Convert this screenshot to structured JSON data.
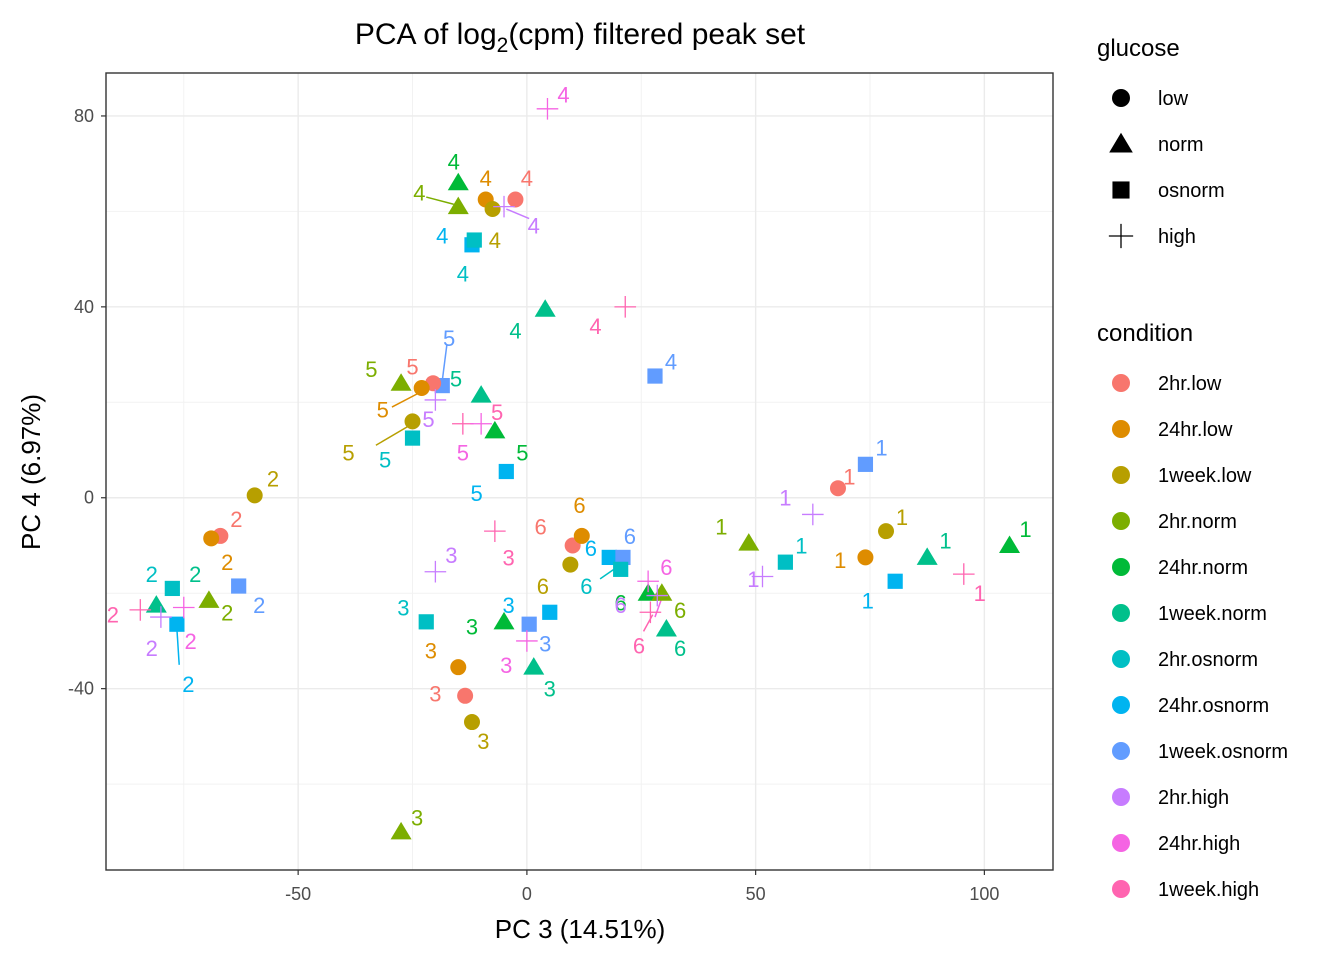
{
  "chart_data": {
    "type": "scatter",
    "title_main": "PCA of log",
    "title_sub": "2",
    "title_rest": "(cpm) filtered peak set",
    "xlabel": "PC 3 (14.51%)",
    "ylabel": "PC 4 (6.97%)",
    "xlim": [
      -92,
      115
    ],
    "ylim": [
      -78,
      89
    ],
    "xticks": [
      -50,
      0,
      50,
      100
    ],
    "xtick_labels": [
      "-50",
      "0",
      "50",
      "100"
    ],
    "yticks": [
      -40,
      0,
      40,
      80
    ],
    "ytick_labels": [
      "-40",
      "0",
      "40",
      "80"
    ],
    "grid": true,
    "legend_position": "right",
    "shape_legend": {
      "title": "glucose",
      "items": [
        {
          "label": "low",
          "shape": "circle"
        },
        {
          "label": "norm",
          "shape": "triangle"
        },
        {
          "label": "osnorm",
          "shape": "square"
        },
        {
          "label": "high",
          "shape": "plus"
        }
      ]
    },
    "color_legend": {
      "title": "condition",
      "items": [
        {
          "label": "2hr.low",
          "color": "#F8766D"
        },
        {
          "label": "24hr.low",
          "color": "#DE8C00"
        },
        {
          "label": "1week.low",
          "color": "#B79F00"
        },
        {
          "label": "2hr.norm",
          "color": "#7CAE00"
        },
        {
          "label": "24hr.norm",
          "color": "#00BA38"
        },
        {
          "label": "1week.norm",
          "color": "#00C08B"
        },
        {
          "label": "2hr.osnorm",
          "color": "#00BFC4"
        },
        {
          "label": "24hr.osnorm",
          "color": "#00B4F0"
        },
        {
          "label": "1week.osnorm",
          "color": "#619CFF"
        },
        {
          "label": "2hr.high",
          "color": "#C77CFF"
        },
        {
          "label": "24hr.high",
          "color": "#F564E3"
        },
        {
          "label": "1week.high",
          "color": "#FF64B0"
        }
      ]
    },
    "points": [
      {
        "x": 74,
        "y": 7,
        "shape": "square",
        "cond": "1week.osnorm",
        "label": "1",
        "lx": 77.5,
        "ly": 10.5
      },
      {
        "x": 68,
        "y": 2,
        "shape": "circle",
        "cond": "2hr.low",
        "label": "1",
        "lx": 70.5,
        "ly": 4.5
      },
      {
        "x": 62.5,
        "y": -3.5,
        "shape": "plus",
        "cond": "2hr.high",
        "label": "1",
        "lx": 56.5,
        "ly": 0
      },
      {
        "x": 78.5,
        "y": -7,
        "shape": "circle",
        "cond": "1week.low",
        "label": "1",
        "lx": 82,
        "ly": -4
      },
      {
        "x": 74,
        "y": -12.5,
        "shape": "circle",
        "cond": "24hr.low",
        "label": "1",
        "lx": 68.5,
        "ly": -13
      },
      {
        "x": 48.5,
        "y": -9.5,
        "shape": "triangle",
        "cond": "2hr.norm",
        "label": "1",
        "lx": 42.5,
        "ly": -6
      },
      {
        "x": 56.5,
        "y": -13.5,
        "shape": "square",
        "cond": "2hr.osnorm",
        "label": "1",
        "lx": 60,
        "ly": -10
      },
      {
        "x": 87.5,
        "y": -12.5,
        "shape": "triangle",
        "cond": "1week.norm",
        "label": "1",
        "lx": 91.5,
        "ly": -9
      },
      {
        "x": 105.5,
        "y": -10,
        "shape": "triangle",
        "cond": "24hr.norm",
        "label": "1",
        "lx": 109,
        "ly": -6.5
      },
      {
        "x": 80.5,
        "y": -17.5,
        "shape": "square",
        "cond": "24hr.osnorm",
        "label": "1",
        "lx": 74.5,
        "ly": -21.5
      },
      {
        "x": 95.5,
        "y": -16,
        "shape": "plus",
        "cond": "1week.high",
        "label": "1",
        "lx": 99,
        "ly": -20
      },
      {
        "x": 51.5,
        "y": -16.5,
        "shape": "plus",
        "cond": "2hr.high",
        "label": "1",
        "lx": 49.5,
        "ly": -17
      },
      {
        "x": -59.5,
        "y": 0.5,
        "shape": "circle",
        "cond": "1week.low",
        "label": "2",
        "lx": -55.5,
        "ly": 4
      },
      {
        "x": -67,
        "y": -8,
        "shape": "circle",
        "cond": "2hr.low",
        "label": "2",
        "lx": -63.5,
        "ly": -4.5
      },
      {
        "x": -69,
        "y": -8.5,
        "shape": "circle",
        "cond": "24hr.low",
        "label": "2",
        "lx": -65.5,
        "ly": -13.5
      },
      {
        "x": -77.5,
        "y": -19,
        "shape": "square",
        "cond": "2hr.osnorm",
        "label": "2",
        "lx": -82,
        "ly": -16
      },
      {
        "x": -69.5,
        "y": -21.5,
        "shape": "triangle",
        "cond": "2hr.norm",
        "label": "2",
        "lx": -65.5,
        "ly": -24
      },
      {
        "x": -63,
        "y": -18.5,
        "shape": "square",
        "cond": "1week.osnorm",
        "label": "2",
        "lx": -58.5,
        "ly": -22.5
      },
      {
        "x": -81,
        "y": -22.5,
        "shape": "triangle",
        "cond": "1week.norm",
        "label": "2",
        "lx": -72.5,
        "ly": -16
      },
      {
        "x": -84.5,
        "y": -23.5,
        "shape": "plus",
        "cond": "1week.high",
        "label": "2",
        "lx": -90.5,
        "ly": -24.5
      },
      {
        "x": -76.5,
        "y": -26.5,
        "shape": "square",
        "cond": "24hr.osnorm",
        "label": "2",
        "lx": -74,
        "ly": -39
      },
      {
        "x": -75,
        "y": -23,
        "shape": "plus",
        "cond": "24hr.high",
        "label": "2",
        "lx": -73.5,
        "ly": -30
      },
      {
        "x": -80,
        "y": -25,
        "shape": "plus",
        "cond": "2hr.high",
        "label": "2",
        "lx": -82,
        "ly": -31.5
      },
      {
        "x": -20,
        "y": -15.5,
        "shape": "plus",
        "cond": "2hr.high",
        "label": "3",
        "lx": -16.5,
        "ly": -12
      },
      {
        "x": -7,
        "y": -7,
        "shape": "plus",
        "cond": "1week.high",
        "label": "3",
        "lx": -4,
        "ly": -12.5
      },
      {
        "x": -22,
        "y": -26,
        "shape": "square",
        "cond": "2hr.osnorm",
        "label": "3",
        "lx": -27,
        "ly": -23
      },
      {
        "x": -5,
        "y": -26,
        "shape": "triangle",
        "cond": "24hr.norm",
        "label": "3",
        "lx": -12,
        "ly": -27
      },
      {
        "x": 0.5,
        "y": -26.5,
        "shape": "square",
        "cond": "1week.osnorm",
        "label": "3",
        "lx": 4,
        "ly": -30.5
      },
      {
        "x": 0,
        "y": -30,
        "shape": "plus",
        "cond": "24hr.high",
        "label": "3",
        "lx": -4.5,
        "ly": -35
      },
      {
        "x": 1.5,
        "y": -35.5,
        "shape": "triangle",
        "cond": "1week.norm",
        "label": "3",
        "lx": 5,
        "ly": -40
      },
      {
        "x": -15,
        "y": -35.5,
        "shape": "circle",
        "cond": "24hr.low",
        "label": "3",
        "lx": -21,
        "ly": -32
      },
      {
        "x": -13.5,
        "y": -41.5,
        "shape": "circle",
        "cond": "2hr.low",
        "label": "3",
        "lx": -20,
        "ly": -41
      },
      {
        "x": -12,
        "y": -47,
        "shape": "circle",
        "cond": "1week.low",
        "label": "3",
        "lx": -9.5,
        "ly": -51
      },
      {
        "x": 5,
        "y": -24,
        "shape": "square",
        "cond": "24hr.osnorm",
        "label": "3",
        "lx": -4,
        "ly": -22.5
      },
      {
        "x": -27.5,
        "y": -70,
        "shape": "triangle",
        "cond": "2hr.norm",
        "label": "3",
        "lx": -24,
        "ly": -67
      },
      {
        "x": 4.5,
        "y": 81.5,
        "shape": "plus",
        "cond": "24hr.high",
        "label": "4",
        "lx": 8,
        "ly": 84.5
      },
      {
        "x": -15,
        "y": 66,
        "shape": "triangle",
        "cond": "24hr.norm",
        "label": "4",
        "lx": -16,
        "ly": 70.5
      },
      {
        "x": -9,
        "y": 62.5,
        "shape": "circle",
        "cond": "24hr.low",
        "label": "4",
        "lx": -9,
        "ly": 67
      },
      {
        "x": -2.5,
        "y": 62.5,
        "shape": "circle",
        "cond": "2hr.low",
        "label": "4",
        "lx": 0,
        "ly": 67
      },
      {
        "x": -15,
        "y": 61,
        "shape": "triangle",
        "cond": "2hr.norm",
        "label": "4",
        "lx": -23.5,
        "ly": 64
      },
      {
        "x": -7.5,
        "y": 60.5,
        "shape": "circle",
        "cond": "1week.low",
        "label": "4",
        "lx": -7,
        "ly": 54
      },
      {
        "x": -5,
        "y": 61,
        "shape": "plus",
        "cond": "2hr.high",
        "label": "4",
        "lx": 1.5,
        "ly": 57
      },
      {
        "x": -12,
        "y": 53,
        "shape": "square",
        "cond": "24hr.osnorm",
        "label": "4",
        "lx": -18.5,
        "ly": 55
      },
      {
        "x": -11.5,
        "y": 54,
        "shape": "square",
        "cond": "2hr.osnorm",
        "label": "4",
        "lx": -14,
        "ly": 47
      },
      {
        "x": 4,
        "y": 39.5,
        "shape": "triangle",
        "cond": "1week.norm",
        "label": "4",
        "lx": -2.5,
        "ly": 35
      },
      {
        "x": 21.5,
        "y": 40,
        "shape": "plus",
        "cond": "1week.high",
        "label": "4",
        "lx": 15,
        "ly": 36
      },
      {
        "x": 28,
        "y": 25.5,
        "shape": "square",
        "cond": "1week.osnorm",
        "label": "4",
        "lx": 31.5,
        "ly": 28.5
      },
      {
        "x": -18.5,
        "y": 23.5,
        "shape": "square",
        "cond": "1week.osnorm",
        "label": "5",
        "lx": -17,
        "ly": 33.5
      },
      {
        "x": -20.5,
        "y": 24,
        "shape": "circle",
        "cond": "2hr.low",
        "label": "5",
        "lx": -25,
        "ly": 27.5
      },
      {
        "x": -23,
        "y": 23,
        "shape": "circle",
        "cond": "24hr.low",
        "label": "5",
        "lx": -31.5,
        "ly": 18.5
      },
      {
        "x": -27.5,
        "y": 24,
        "shape": "triangle",
        "cond": "2hr.norm",
        "label": "5",
        "lx": -34,
        "ly": 27
      },
      {
        "x": -10,
        "y": 21.5,
        "shape": "triangle",
        "cond": "1week.norm",
        "label": "5",
        "lx": -15.5,
        "ly": 25
      },
      {
        "x": -25,
        "y": 16,
        "shape": "circle",
        "cond": "1week.low",
        "label": "5",
        "lx": -39,
        "ly": 9.5
      },
      {
        "x": -20,
        "y": 20.5,
        "shape": "plus",
        "cond": "2hr.high",
        "label": "5",
        "lx": -21.5,
        "ly": 16.5
      },
      {
        "x": -14,
        "y": 15.5,
        "shape": "plus",
        "cond": "1week.high",
        "label": "5",
        "lx": -6.5,
        "ly": 18
      },
      {
        "x": -10,
        "y": 15.5,
        "shape": "plus",
        "cond": "24hr.high",
        "label": "5",
        "lx": -14,
        "ly": 9.5
      },
      {
        "x": -7,
        "y": 14,
        "shape": "triangle",
        "cond": "24hr.norm",
        "label": "5",
        "lx": -1,
        "ly": 9.5
      },
      {
        "x": -25,
        "y": 12.5,
        "shape": "square",
        "cond": "2hr.osnorm",
        "label": "5",
        "lx": -31,
        "ly": 8
      },
      {
        "x": -4.5,
        "y": 5.5,
        "shape": "square",
        "cond": "24hr.osnorm",
        "label": "5",
        "lx": -11,
        "ly": 1
      },
      {
        "x": 10,
        "y": -10,
        "shape": "circle",
        "cond": "2hr.low",
        "label": "6",
        "lx": 3,
        "ly": -6
      },
      {
        "x": 12,
        "y": -8,
        "shape": "circle",
        "cond": "24hr.low",
        "label": "6",
        "lx": 11.5,
        "ly": -1.5
      },
      {
        "x": 9.5,
        "y": -14,
        "shape": "circle",
        "cond": "1week.low",
        "label": "6",
        "lx": 3.5,
        "ly": -18.5
      },
      {
        "x": 18,
        "y": -12.5,
        "shape": "square",
        "cond": "24hr.osnorm",
        "label": "6",
        "lx": 14,
        "ly": -10.5
      },
      {
        "x": 21,
        "y": -12.5,
        "shape": "square",
        "cond": "1week.osnorm",
        "label": "6",
        "lx": 22.5,
        "ly": -8
      },
      {
        "x": 20.5,
        "y": -15,
        "shape": "square",
        "cond": "2hr.osnorm",
        "label": "6",
        "lx": 13,
        "ly": -18.5
      },
      {
        "x": 26.5,
        "y": -20,
        "shape": "triangle",
        "cond": "24hr.norm",
        "label": "6",
        "lx": 20.5,
        "ly": -22
      },
      {
        "x": 29.5,
        "y": -20,
        "shape": "triangle",
        "cond": "2hr.norm",
        "label": "6",
        "lx": 33.5,
        "ly": -23.5
      },
      {
        "x": 26.5,
        "y": -17.5,
        "shape": "plus",
        "cond": "24hr.high",
        "label": "6",
        "lx": 30.5,
        "ly": -14.5
      },
      {
        "x": 28.5,
        "y": -20.5,
        "shape": "plus",
        "cond": "2hr.high",
        "label": "6",
        "lx": 20.5,
        "ly": -22.5
      },
      {
        "x": 30.5,
        "y": -27.5,
        "shape": "triangle",
        "cond": "1week.norm",
        "label": "6",
        "lx": 33.5,
        "ly": -31.5
      },
      {
        "x": 27,
        "y": -24,
        "shape": "plus",
        "cond": "1week.high",
        "label": "6",
        "lx": 24.5,
        "ly": -31
      }
    ],
    "leader_lines": [
      {
        "x1": -17.5,
        "y1": 32,
        "x2": -18.5,
        "y2": 24.5,
        "cond": "1week.osnorm"
      },
      {
        "x1": -33,
        "y1": 11,
        "x2": -25,
        "y2": 15.5,
        "cond": "1week.low"
      },
      {
        "x1": -29.5,
        "y1": 19,
        "x2": -23.5,
        "y2": 22,
        "cond": "24hr.low"
      },
      {
        "x1": -22,
        "y1": 63,
        "x2": -16,
        "y2": 61.5,
        "cond": "2hr.norm"
      },
      {
        "x1": 0.5,
        "y1": 58.5,
        "x2": -4.5,
        "y2": 60.5,
        "cond": "2hr.high"
      },
      {
        "x1": -76,
        "y1": -35,
        "x2": -76.5,
        "y2": -27.5,
        "cond": "24hr.osnorm"
      },
      {
        "x1": 16,
        "y1": -17,
        "x2": 19,
        "y2": -15,
        "cond": "2hr.osnorm"
      },
      {
        "x1": 25.5,
        "y1": -28,
        "x2": 27.5,
        "y2": -24.5,
        "cond": "1week.high"
      },
      {
        "x1": 28,
        "y1": -25,
        "x2": 29.5,
        "y2": -21,
        "cond": "24hr.high"
      }
    ]
  }
}
